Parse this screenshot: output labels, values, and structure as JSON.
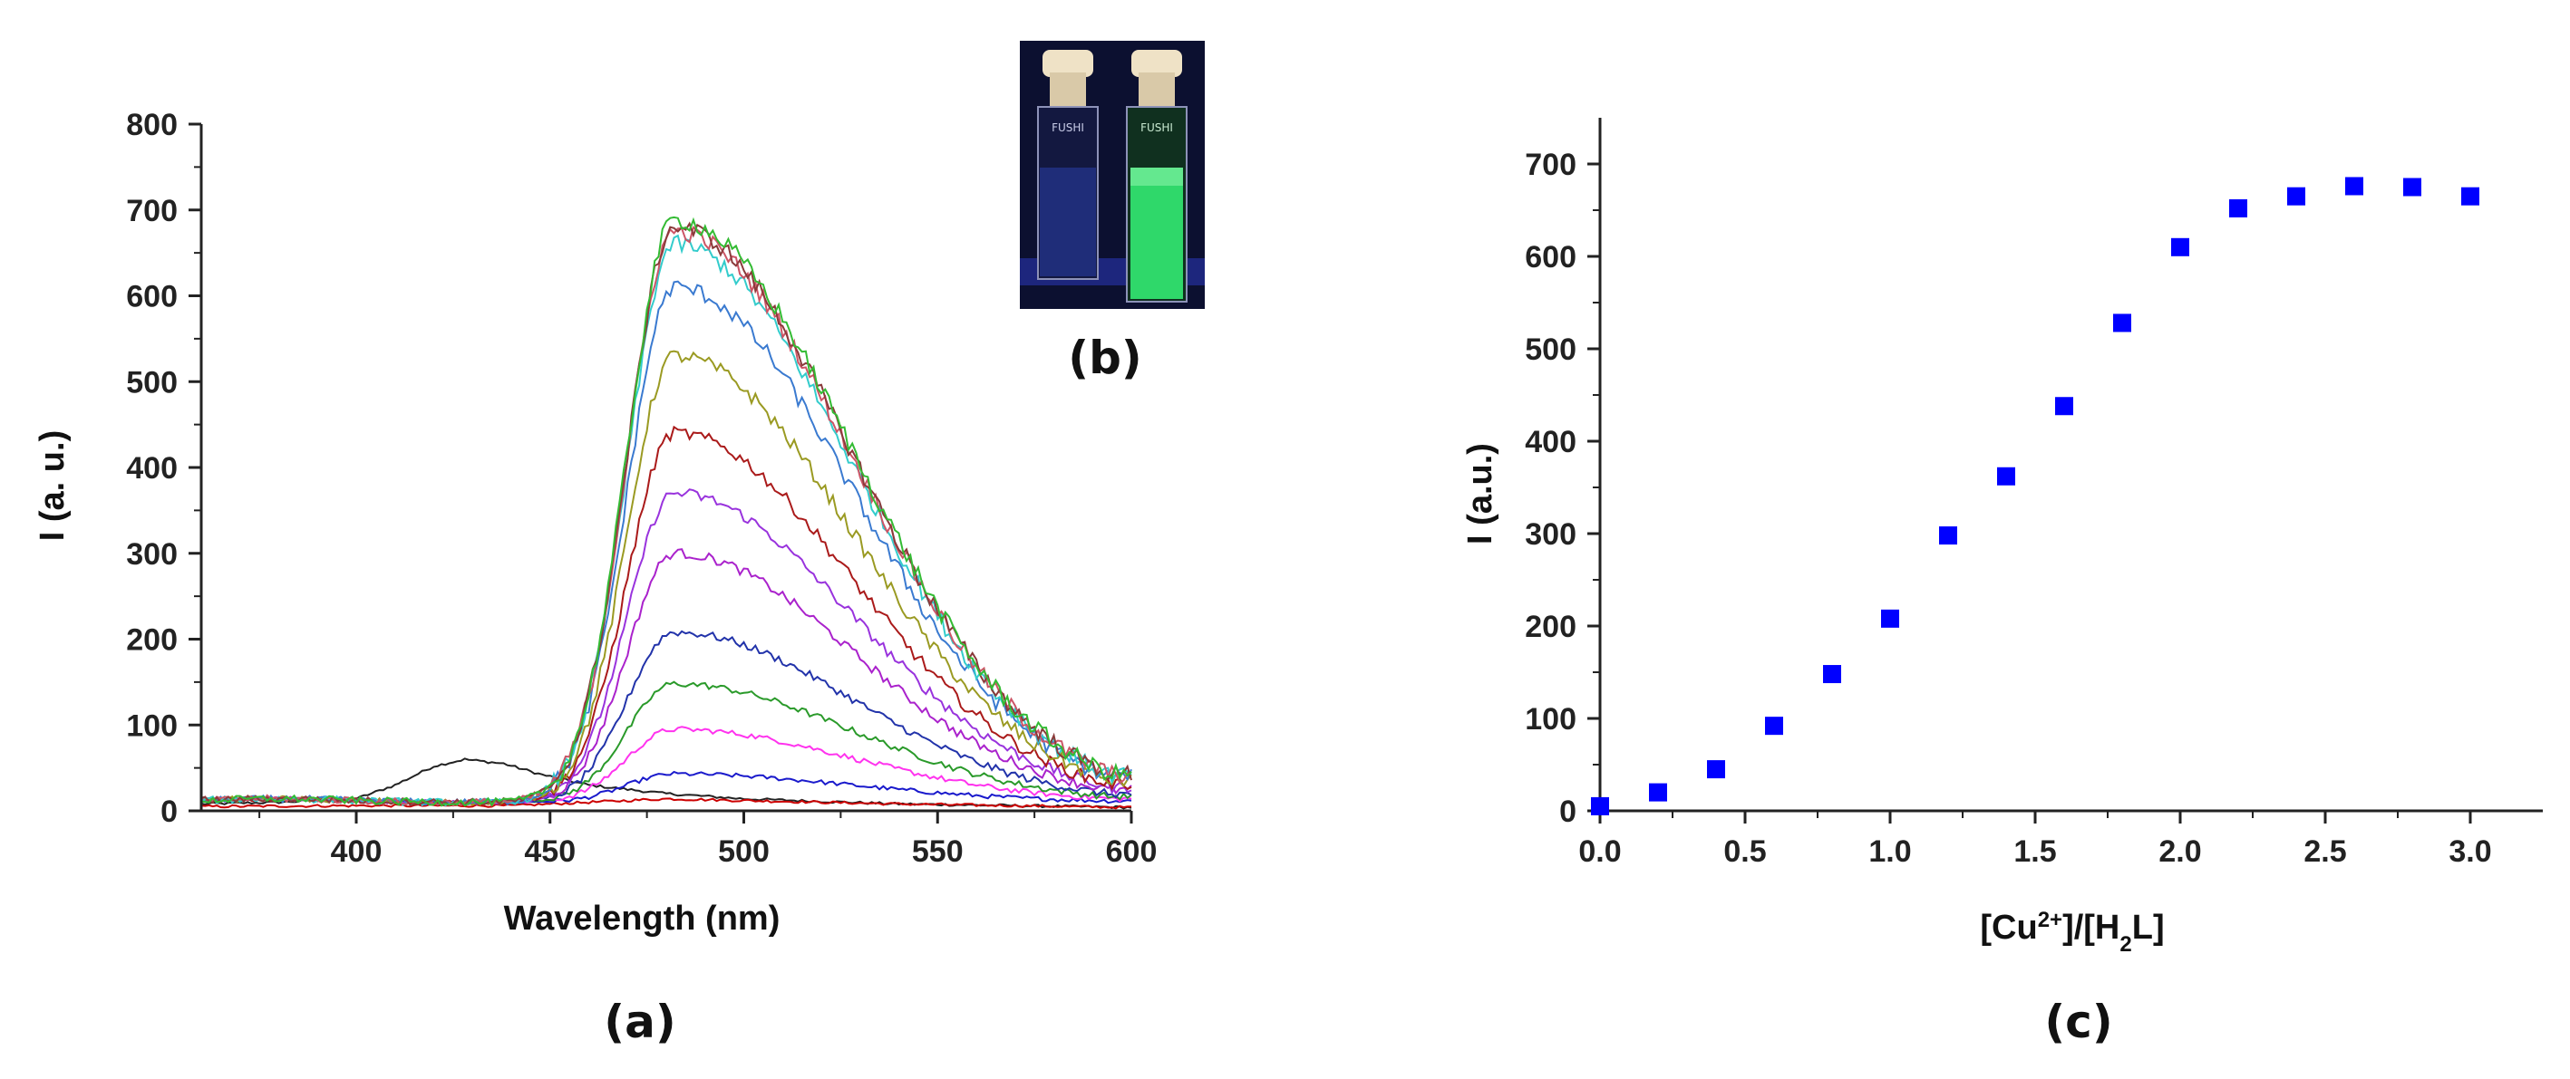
{
  "panels": {
    "a": "(a)",
    "b": "(b)",
    "c": "(c)"
  },
  "chart_data": [
    {
      "id": "a",
      "type": "line",
      "xlabel": "Wavelength (nm)",
      "ylabel": "I (a. u.)",
      "xlim": [
        360,
        600
      ],
      "ylim": [
        0,
        800
      ],
      "xticks": [
        400,
        450,
        500,
        550,
        600
      ],
      "yticks": [
        0,
        100,
        200,
        300,
        400,
        500,
        600,
        700,
        800
      ],
      "grid": false,
      "series": [
        {
          "color": "#222222",
          "kind": "free",
          "points": [
            [
              360,
              8
            ],
            [
              380,
              10
            ],
            [
              400,
              14
            ],
            [
              410,
              30
            ],
            [
              420,
              52
            ],
            [
              428,
              60
            ],
            [
              438,
              55
            ],
            [
              448,
              42
            ],
            [
              460,
              30
            ],
            [
              480,
              20
            ],
            [
              500,
              14
            ],
            [
              540,
              8
            ],
            [
              600,
              4
            ]
          ]
        },
        {
          "color": "#cc0000",
          "kind": "free",
          "points": [
            [
              360,
              5
            ],
            [
              400,
              6
            ],
            [
              440,
              6
            ],
            [
              460,
              10
            ],
            [
              480,
              14
            ],
            [
              500,
              12
            ],
            [
              540,
              8
            ],
            [
              600,
              4
            ]
          ]
        },
        {
          "color": "#1a1acc",
          "kind": "em",
          "peak": 43,
          "offset": 10,
          "tail": 0.05
        },
        {
          "color": "#ff33ee",
          "kind": "em",
          "peak": 95,
          "offset": 10,
          "tail": 0.05
        },
        {
          "color": "#2a9a2a",
          "kind": "em",
          "peak": 148,
          "offset": 10,
          "tail": 0.05
        },
        {
          "color": "#2233aa",
          "kind": "em",
          "peak": 208,
          "offset": 10,
          "tail": 0.05
        },
        {
          "color": "#aa22cc",
          "kind": "em",
          "peak": 300,
          "offset": 10,
          "tail": 0.05
        },
        {
          "color": "#9933dd",
          "kind": "em",
          "peak": 370,
          "offset": 10,
          "tail": 0.05
        },
        {
          "color": "#aa1a1a",
          "kind": "em",
          "peak": 440,
          "offset": 10,
          "tail": 0.05
        },
        {
          "color": "#9a9a22",
          "kind": "em",
          "peak": 530,
          "offset": 10,
          "tail": 0.05
        },
        {
          "color": "#3a7ad0",
          "kind": "em",
          "peak": 610,
          "offset": 10,
          "tail": 0.05
        },
        {
          "color": "#33cccc",
          "kind": "em",
          "peak": 660,
          "offset": 10,
          "tail": 0.05
        },
        {
          "color": "#cc5566",
          "kind": "em",
          "peak": 675,
          "offset": 10,
          "tail": 0.05
        },
        {
          "color": "#8a3a3a",
          "kind": "em",
          "peak": 680,
          "offset": 10,
          "tail": 0.05
        },
        {
          "color": "#33bb33",
          "kind": "em",
          "peak": 688,
          "offset": 10,
          "tail": 0.05
        }
      ]
    },
    {
      "id": "c",
      "type": "scatter",
      "xlabel_main": "[Cu",
      "xlabel_sup": "2+",
      "xlabel_mid": "]/[H",
      "xlabel_sub": "2",
      "xlabel_end": "L]",
      "ylabel": "I (a.u.)",
      "xlim": [
        0,
        3.25
      ],
      "ylim": [
        0,
        750
      ],
      "xticks": [
        "0.0",
        "0.5",
        "1.0",
        "1.5",
        "2.0",
        "2.5",
        "3.0"
      ],
      "yticks": [
        0,
        100,
        200,
        300,
        400,
        500,
        600,
        700
      ],
      "marker_color": "#0000ff",
      "x": [
        0.0,
        0.2,
        0.4,
        0.6,
        0.8,
        1.0,
        1.2,
        1.4,
        1.6,
        1.8,
        2.0,
        2.2,
        2.4,
        2.6,
        2.8,
        3.0
      ],
      "y": [
        5,
        20,
        45,
        92,
        148,
        208,
        298,
        362,
        438,
        528,
        610,
        652,
        665,
        676,
        675,
        665
      ]
    }
  ],
  "photo": {
    "description": "two cuvettes under UV light",
    "left_vial_color": "#2a3fa8",
    "right_vial_color": "#2fd86a"
  }
}
